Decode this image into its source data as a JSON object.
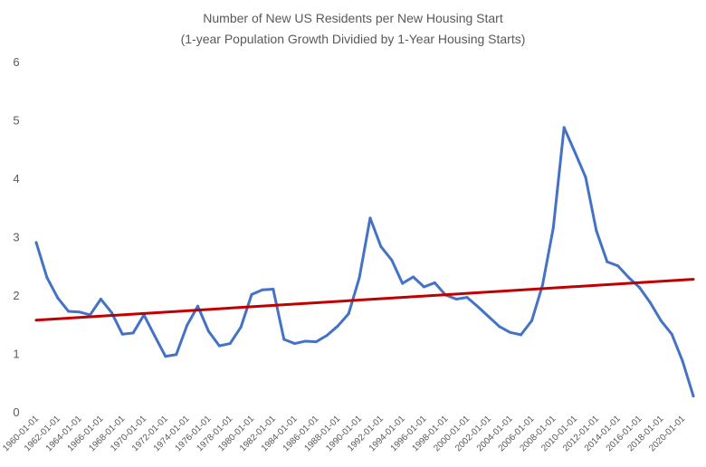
{
  "chart_data": {
    "type": "line",
    "title": "Number of New US Residents per New Housing Start",
    "subtitle": "(1-year Population Growth Dividied by 1-Year Housing Starts)",
    "xlabel": "",
    "ylabel": "",
    "ylim": [
      0,
      6
    ],
    "yticks": [
      0,
      1,
      2,
      3,
      4,
      5,
      6
    ],
    "grid": false,
    "legend": "none",
    "x": [
      1960,
      1961,
      1962,
      1963,
      1964,
      1965,
      1966,
      1967,
      1968,
      1969,
      1970,
      1971,
      1972,
      1973,
      1974,
      1975,
      1976,
      1977,
      1978,
      1979,
      1980,
      1981,
      1982,
      1983,
      1984,
      1985,
      1986,
      1987,
      1988,
      1989,
      1990,
      1991,
      1992,
      1993,
      1994,
      1995,
      1996,
      1997,
      1998,
      1999,
      2000,
      2001,
      2002,
      2003,
      2004,
      2005,
      2006,
      2007,
      2008,
      2009,
      2010,
      2011,
      2012,
      2013,
      2014,
      2015,
      2016,
      2017,
      2018,
      2019,
      2020,
      2021
    ],
    "x_tick_labels": [
      "1960-01-01",
      "1962-01-01",
      "1964-01-01",
      "1966-01-01",
      "1968-01-01",
      "1970-01-01",
      "1972-01-01",
      "1974-01-01",
      "1976-01-01",
      "1978-01-01",
      "1980-01-01",
      "1982-01-01",
      "1984-01-01",
      "1986-01-01",
      "1988-01-01",
      "1990-01-01",
      "1992-01-01",
      "1994-01-01",
      "1996-01-01",
      "1998-01-01",
      "2000-01-01",
      "2002-01-01",
      "2004-01-01",
      "2006-01-01",
      "2008-01-01",
      "2010-01-01",
      "2012-01-01",
      "2014-01-01",
      "2016-01-01",
      "2018-01-01",
      "2020-01-01"
    ],
    "series": [
      {
        "color": "#4472C4",
        "values": [
          2.9,
          2.3,
          1.95,
          1.72,
          1.71,
          1.66,
          1.93,
          1.7,
          1.33,
          1.35,
          1.66,
          1.3,
          0.95,
          0.98,
          1.48,
          1.81,
          1.38,
          1.13,
          1.17,
          1.45,
          2.01,
          2.09,
          2.1,
          1.24,
          1.17,
          1.21,
          1.2,
          1.31,
          1.47,
          1.68,
          2.3,
          3.32,
          2.83,
          2.6,
          2.2,
          2.31,
          2.14,
          2.21,
          2.0,
          1.93,
          1.96,
          1.8,
          1.63,
          1.46,
          1.36,
          1.32,
          1.56,
          2.17,
          3.15,
          4.87,
          4.45,
          4.02,
          3.1,
          2.57,
          2.5,
          2.3,
          2.13,
          1.87,
          1.56,
          1.33,
          0.87,
          0.27
        ]
      },
      {
        "color": "#C00000",
        "trend": "linear",
        "values_start_end": [
          1.57,
          2.27
        ]
      }
    ]
  }
}
